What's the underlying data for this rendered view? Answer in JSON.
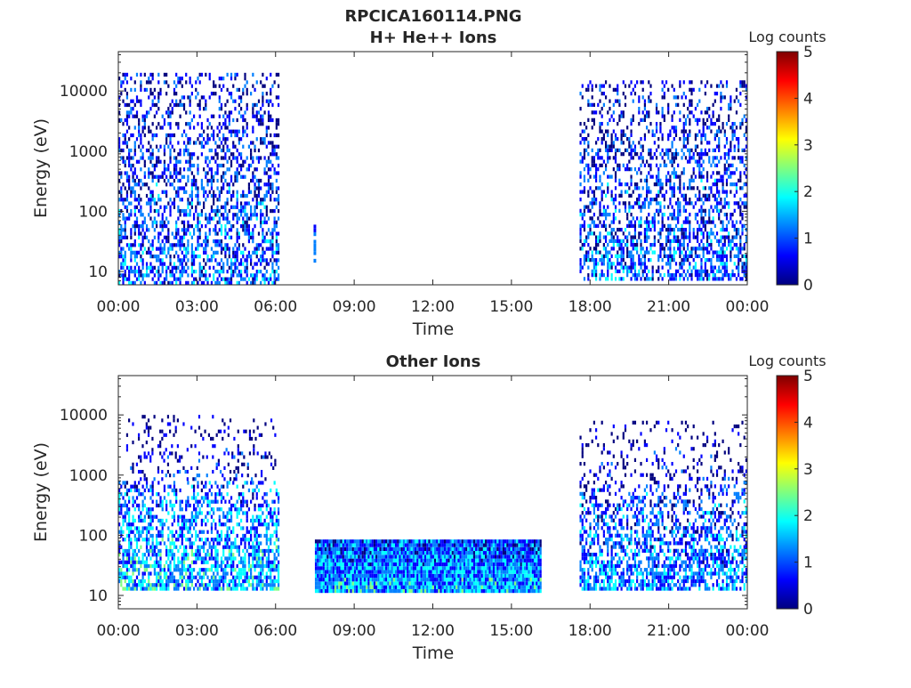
{
  "figure": {
    "title": "RPCICA160114.PNG"
  },
  "colormap": [
    "#00007f",
    "#0000ff",
    "#007fff",
    "#00ffff",
    "#7fff7f",
    "#ffff00",
    "#ff7f00",
    "#ff0000",
    "#7f0000"
  ],
  "chart_data": [
    {
      "type": "heatmap",
      "title": "H+ He++ Ions",
      "xlabel": "Time",
      "ylabel": "Energy (eV)",
      "x_ticks": [
        "00:00",
        "03:00",
        "06:00",
        "09:00",
        "12:00",
        "15:00",
        "18:00",
        "21:00",
        "00:00"
      ],
      "x_tick_hours": [
        0,
        3,
        6,
        9,
        12,
        15,
        18,
        21,
        24
      ],
      "xlim_hours": [
        0,
        24
      ],
      "y_scale": "log",
      "y_ticks": [
        "10",
        "100",
        "1000",
        "10000"
      ],
      "y_tick_values": [
        10,
        100,
        1000,
        10000
      ],
      "ylim": [
        6,
        45000
      ],
      "colorbar": {
        "label": "Log counts",
        "range": [
          0,
          5
        ],
        "ticks": [
          "0",
          "1",
          "2",
          "3",
          "4",
          "5"
        ]
      },
      "blocks": [
        {
          "t_start": 0.0,
          "t_end": 6.15,
          "e_min": 6,
          "e_max": 20000,
          "density": 0.55,
          "level_mean": 1.0
        },
        {
          "t_start": 7.45,
          "t_end": 7.55,
          "e_min": 14,
          "e_max": 60,
          "density": 0.9,
          "level_mean": 1.0
        },
        {
          "t_start": 17.6,
          "t_end": 24.0,
          "e_min": 7,
          "e_max": 15000,
          "density": 0.55,
          "level_mean": 1.0
        }
      ]
    },
    {
      "type": "heatmap",
      "title": "Other Ions",
      "xlabel": "Time",
      "ylabel": "Energy (eV)",
      "x_ticks": [
        "00:00",
        "03:00",
        "06:00",
        "09:00",
        "12:00",
        "15:00",
        "18:00",
        "21:00",
        "00:00"
      ],
      "x_tick_hours": [
        0,
        3,
        6,
        9,
        12,
        15,
        18,
        21,
        24
      ],
      "xlim_hours": [
        0,
        24
      ],
      "y_scale": "log",
      "y_ticks": [
        "10",
        "100",
        "1000",
        "10000"
      ],
      "y_tick_values": [
        10,
        100,
        1000,
        10000
      ],
      "ylim": [
        6,
        45000
      ],
      "colorbar": {
        "label": "Log counts",
        "range": [
          0,
          5
        ],
        "ticks": [
          "0",
          "1",
          "2",
          "3",
          "4",
          "5"
        ]
      },
      "blocks": [
        {
          "t_start": 0.0,
          "t_end": 6.15,
          "e_min": 12,
          "e_max": 800,
          "density": 0.75,
          "level_mean": 1.6
        },
        {
          "t_start": 0.3,
          "t_end": 6.1,
          "e_min": 800,
          "e_max": 10000,
          "density": 0.2,
          "level_mean": 0.5
        },
        {
          "t_start": 7.5,
          "t_end": 16.15,
          "e_min": 11,
          "e_max": 85,
          "density": 1.0,
          "level_mean": 1.5
        },
        {
          "t_start": 17.6,
          "t_end": 24.0,
          "e_min": 12,
          "e_max": 700,
          "density": 0.7,
          "level_mean": 1.3
        },
        {
          "t_start": 17.6,
          "t_end": 24.0,
          "e_min": 700,
          "e_max": 8000,
          "density": 0.18,
          "level_mean": 0.4
        }
      ]
    }
  ]
}
